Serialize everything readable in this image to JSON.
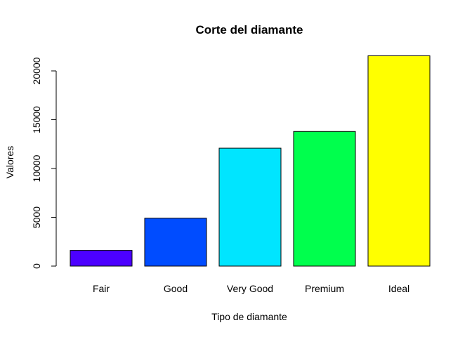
{
  "chart_data": {
    "type": "bar",
    "title": "Corte del diamante",
    "xlabel": "Tipo de diamante",
    "ylabel": "Valores",
    "categories": [
      "Fair",
      "Good",
      "Very Good",
      "Premium",
      "Ideal"
    ],
    "values": [
      1610,
      4906,
      12082,
      13791,
      21551
    ],
    "colors": [
      "#4C00FF",
      "#004CFF",
      "#00E5FF",
      "#00FF4D",
      "#FFFF00"
    ],
    "ylim": [
      0,
      22000
    ],
    "yticks": [
      0,
      5000,
      10000,
      15000,
      20000
    ],
    "ytick_labels": [
      "0",
      "5000",
      "10000",
      "15000",
      "20000"
    ],
    "grid": false,
    "legend": "none"
  }
}
